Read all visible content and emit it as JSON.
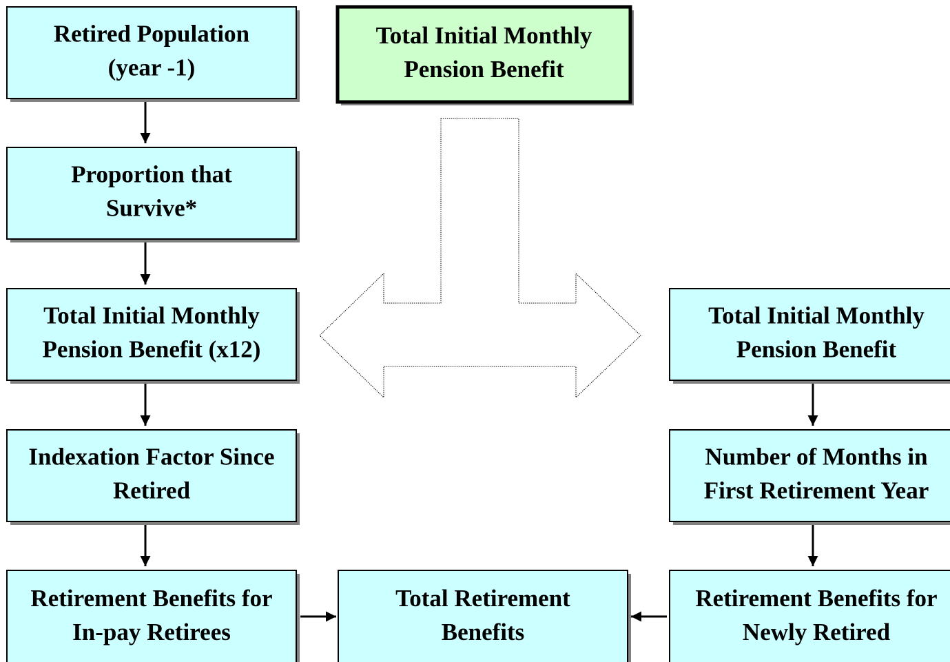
{
  "nodes": [
    {
      "lines": [
        "Retired Population",
        "(year -1)"
      ]
    },
    {
      "lines": [
        "Proportion that",
        "Survive*"
      ]
    },
    {
      "lines": [
        "Total Initial Monthly",
        "Pension Benefit (x12)"
      ]
    },
    {
      "lines": [
        "Indexation Factor Since",
        "Retired"
      ]
    },
    {
      "lines": [
        "Retirement Benefits for",
        "In-pay Retirees"
      ]
    },
    {
      "lines": [
        "Total Initial Monthly",
        "Pension Benefit"
      ]
    },
    {
      "lines": [
        "Total Initial Monthly",
        "Pension Benefit"
      ]
    },
    {
      "lines": [
        "Number of Months in",
        "First Retirement Year"
      ]
    },
    {
      "lines": [
        "Retirement Benefits for",
        "Newly Retired"
      ]
    },
    {
      "lines": [
        "Total Retirement",
        "Benefits"
      ]
    }
  ]
}
